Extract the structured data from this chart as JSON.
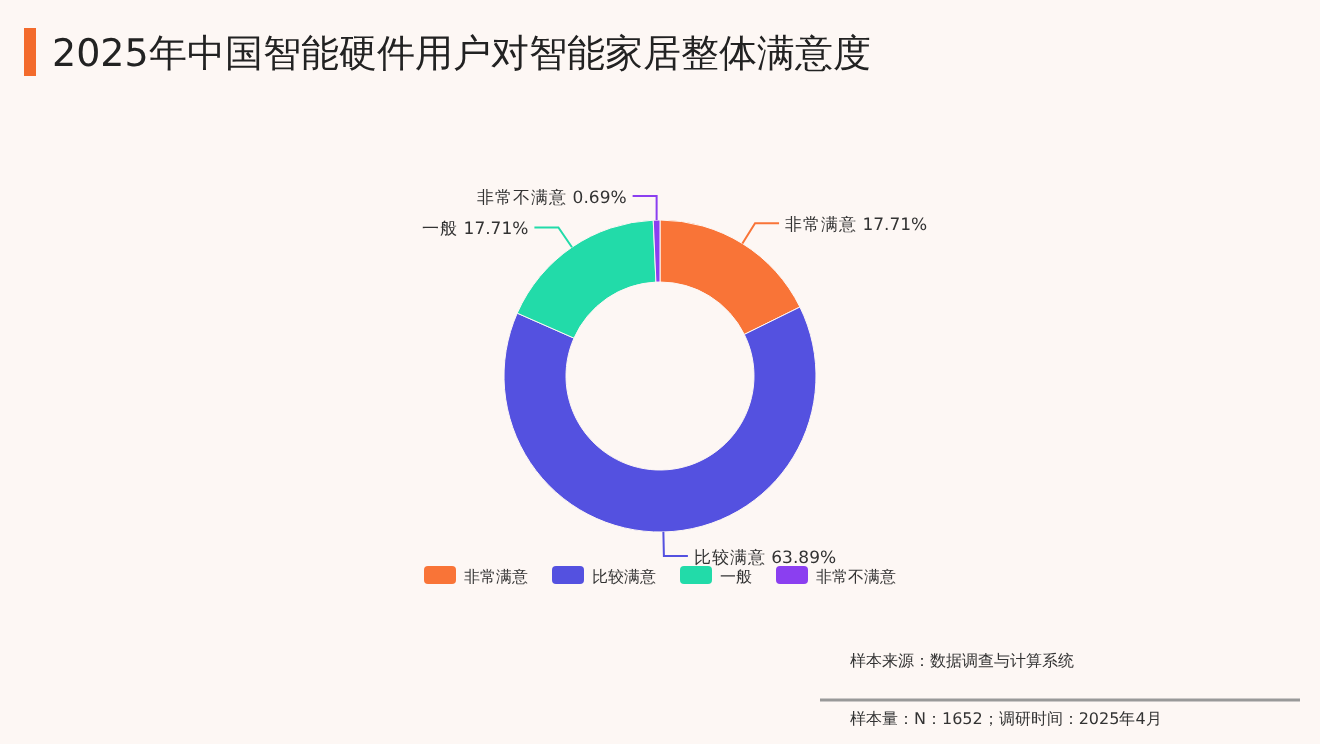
{
  "chart_data": {
    "type": "donut",
    "title": "2025年中国智能硬件用户对智能家居整体满意度",
    "categories": [
      "非常满意",
      "比较满意",
      "一般",
      "非常不满意"
    ],
    "values": [
      17.71,
      63.89,
      17.71,
      0.69
    ],
    "colors": [
      "#f97437",
      "#5451e0",
      "#22dba9",
      "#8b3ff0"
    ],
    "value_labels": [
      "17.71%",
      "63.89%",
      "17.71%",
      "0.69%"
    ],
    "legend": "bottom",
    "annotations": [
      "样本来源：数据调查与计算系统",
      "样本量：N：1652；调研时间：2025年4月"
    ]
  }
}
